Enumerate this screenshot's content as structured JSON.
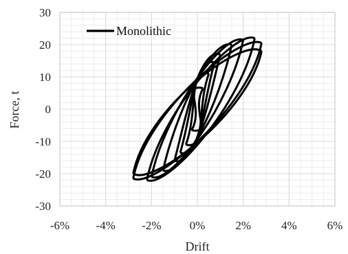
{
  "chart_data": {
    "type": "line",
    "title": "",
    "xlabel": "Drift",
    "ylabel": "Force, t",
    "xlim": [
      -0.06,
      0.06
    ],
    "ylim": [
      -30,
      30
    ],
    "x_ticks": [
      -0.06,
      -0.04,
      -0.02,
      0,
      0.02,
      0.04,
      0.06
    ],
    "x_tick_labels": [
      "-6%",
      "-4%",
      "-2%",
      "0%",
      "2%",
      "4%",
      "6%"
    ],
    "y_ticks": [
      -30,
      -20,
      -10,
      0,
      10,
      20,
      30
    ],
    "y_tick_labels": [
      "-30",
      "-20",
      "-10",
      "0",
      "10",
      "20",
      "30"
    ],
    "grid": true,
    "legend": "top-left",
    "colors": {
      "series": "#000000",
      "grid": "#d9d9d9",
      "axis": "#888888"
    },
    "series": [
      {
        "name": "Monolithic",
        "loops": [
          {
            "peak_x": 0.0025,
            "peak_y": 6.5,
            "neg_x": -0.0025,
            "neg_y": -6.5,
            "width": 2.5
          },
          {
            "peak_x": 0.005,
            "peak_y": 11.0,
            "neg_x": -0.005,
            "neg_y": -11.0,
            "width": 3.5
          },
          {
            "peak_x": 0.0075,
            "peak_y": 14.5,
            "neg_x": -0.0075,
            "neg_y": -13.5,
            "width": 4.0
          },
          {
            "peak_x": 0.01,
            "peak_y": 17.0,
            "neg_x": -0.01,
            "neg_y": -16.0,
            "width": 4.5
          },
          {
            "peak_x": 0.015,
            "peak_y": 20.0,
            "neg_x": -0.015,
            "neg_y": -19.0,
            "width": 5.0
          },
          {
            "peak_x": 0.02,
            "peak_y": 21.5,
            "neg_x": -0.02,
            "neg_y": -21.0,
            "width": 5.5
          },
          {
            "peak_x": 0.025,
            "peak_y": 22.0,
            "neg_x": -0.022,
            "neg_y": -22.0,
            "width": 6.0
          },
          {
            "peak_x": 0.028,
            "peak_y": 20.5,
            "neg_x": -0.028,
            "neg_y": -21.5,
            "width": 6.5
          },
          {
            "peak_x": 0.028,
            "peak_y": 18.0,
            "neg_x": -0.028,
            "neg_y": -20.0,
            "width": 7.0
          }
        ]
      }
    ]
  }
}
